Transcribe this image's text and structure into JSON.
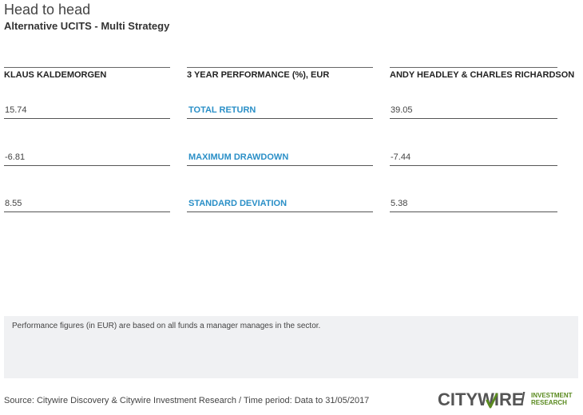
{
  "header": {
    "title": "Head to head",
    "subtitle": "Alternative UCITS - Multi Strategy"
  },
  "columns": {
    "left": {
      "heading": "KLAUS KALDEMORGEN",
      "values": [
        "15.74",
        "-6.81",
        "8.55"
      ]
    },
    "middle": {
      "heading": "3 YEAR PERFORMANCE (%), EUR",
      "metrics": [
        "TOTAL RETURN",
        "MAXIMUM DRAWDOWN",
        "STANDARD DEVIATION"
      ]
    },
    "right": {
      "heading": "ANDY HEADLEY & CHARLES RICHARDSON",
      "values": [
        "39.05",
        "-7.44",
        "5.38"
      ]
    }
  },
  "note": "Performance figures (in EUR) are based on all funds a manager manages in the sector.",
  "footer": {
    "source": "Source: Citywire Discovery & Citywire Investment Research / Time period: Data to 31/05/2017",
    "logo_word": "CITYWIRE",
    "logo_slash": "/",
    "logo_sub_1": "INVESTMENT",
    "logo_sub_2": "RESEARCH"
  },
  "colors": {
    "metric_blue": "#2a8fc7",
    "logo_green": "#5a8a1f"
  }
}
